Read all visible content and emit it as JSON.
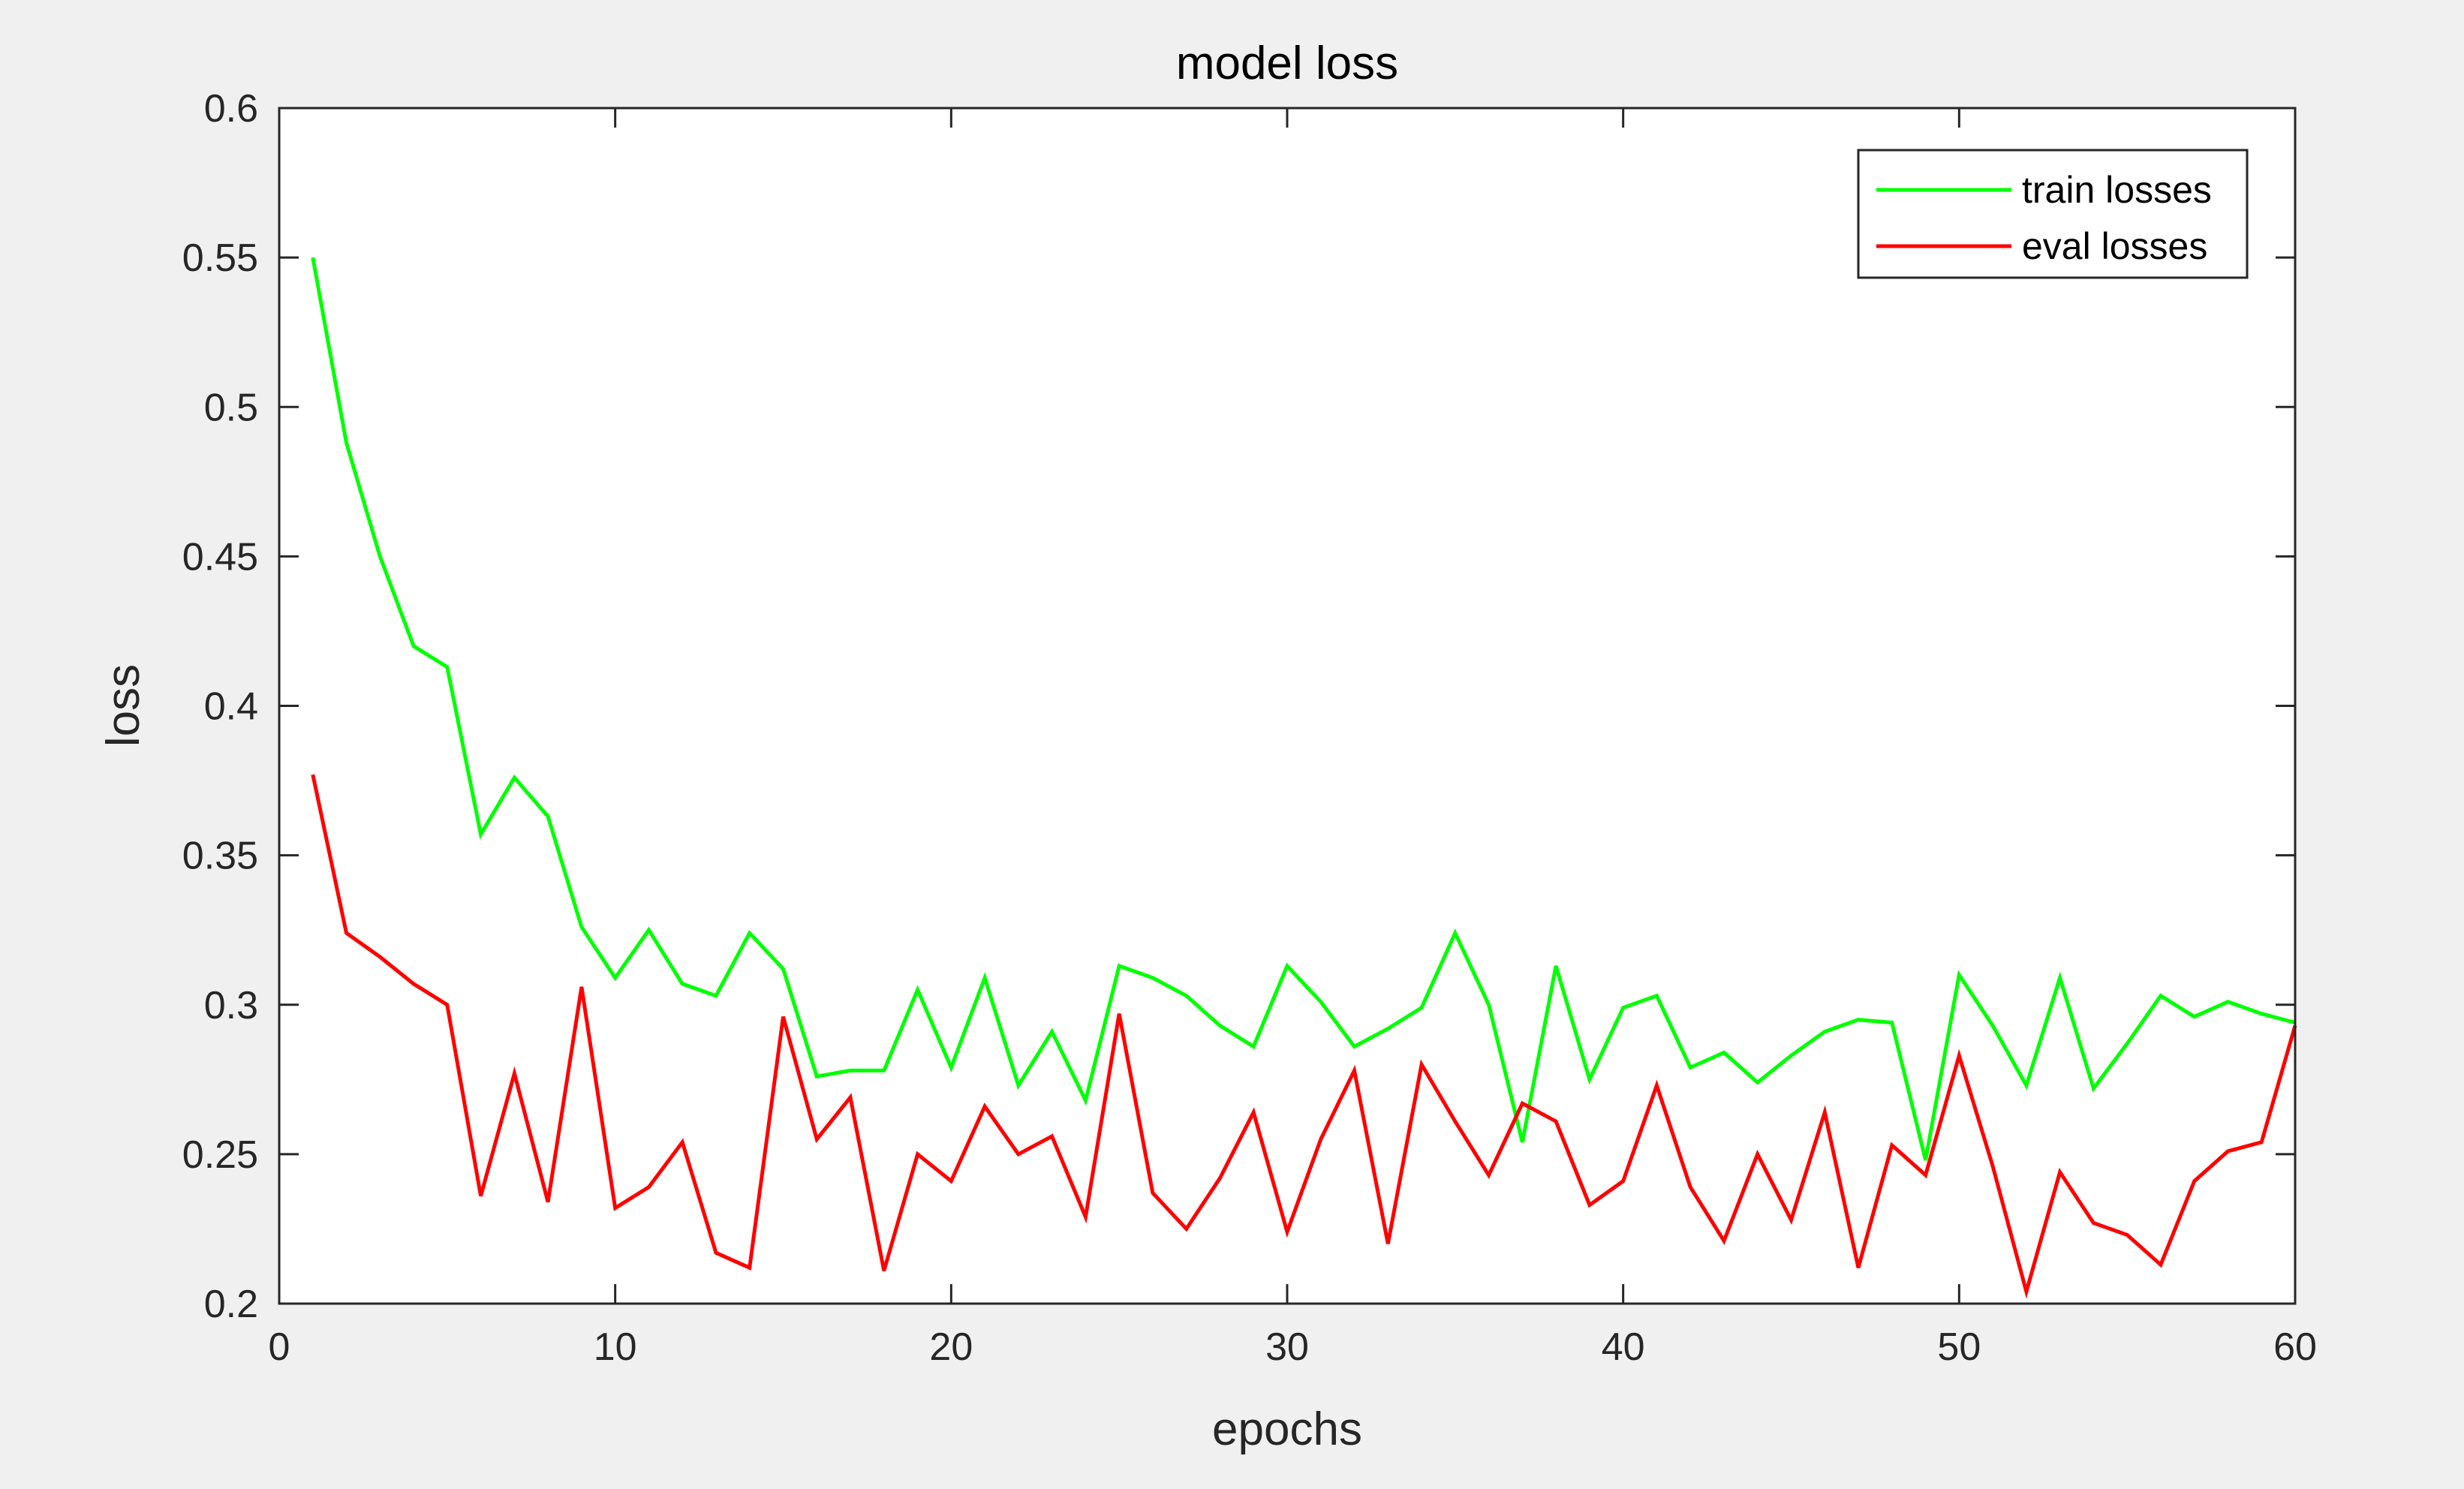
{
  "chart_data": {
    "type": "line",
    "title": "model loss",
    "xlabel": "epochs",
    "ylabel": "loss",
    "xlim": [
      0,
      60
    ],
    "ylim": [
      0.2,
      0.6
    ],
    "x_ticks": [
      "0",
      "10",
      "20",
      "30",
      "40",
      "50",
      "60"
    ],
    "y_ticks": [
      "0.2",
      "0.25",
      "0.3",
      "0.35",
      "0.4",
      "0.45",
      "0.5",
      "0.55",
      "0.6"
    ],
    "grid": false,
    "legend_position": "top-right",
    "x": [
      1,
      2,
      3,
      4,
      5,
      6,
      7,
      8,
      9,
      10,
      11,
      12,
      13,
      14,
      15,
      16,
      17,
      18,
      19,
      20,
      21,
      22,
      23,
      24,
      25,
      26,
      27,
      28,
      29,
      30,
      31,
      32,
      33,
      34,
      35,
      36,
      37,
      38,
      39,
      40,
      41,
      42,
      43,
      44,
      45,
      46,
      47,
      48,
      49,
      50,
      51,
      52,
      53,
      54,
      55,
      56,
      57,
      58,
      59,
      60
    ],
    "series": [
      {
        "name": "train losses",
        "color": "#00ff00",
        "values": [
          0.55,
          0.488,
          0.45,
          0.42,
          0.413,
          0.357,
          0.376,
          0.363,
          0.326,
          0.309,
          0.325,
          0.307,
          0.303,
          0.324,
          0.312,
          0.276,
          0.278,
          0.278,
          0.305,
          0.279,
          0.309,
          0.273,
          0.291,
          0.268,
          0.313,
          0.309,
          0.303,
          0.293,
          0.286,
          0.313,
          0.301,
          0.286,
          0.292,
          0.299,
          0.324,
          0.3,
          0.254,
          0.313,
          0.275,
          0.299,
          0.303,
          0.279,
          0.284,
          0.274,
          0.283,
          0.291,
          0.295,
          0.294,
          0.248,
          0.31,
          0.293,
          0.273,
          0.309,
          0.272,
          0.287,
          0.303,
          0.296,
          0.301,
          0.297,
          0.294
        ]
      },
      {
        "name": "eval losses",
        "color": "#ff0000",
        "values": [
          0.377,
          0.324,
          0.316,
          0.307,
          0.3,
          0.236,
          0.277,
          0.234,
          0.306,
          0.232,
          0.239,
          0.254,
          0.217,
          0.212,
          0.296,
          0.255,
          0.269,
          0.211,
          0.25,
          0.241,
          0.266,
          0.25,
          0.256,
          0.229,
          0.297,
          0.237,
          0.225,
          0.242,
          0.264,
          0.224,
          0.255,
          0.278,
          0.22,
          0.28,
          0.261,
          0.243,
          0.267,
          0.261,
          0.233,
          0.241,
          0.273,
          0.239,
          0.221,
          0.25,
          0.228,
          0.264,
          0.212,
          0.253,
          0.243,
          0.283,
          0.246,
          0.204,
          0.244,
          0.227,
          0.223,
          0.213,
          0.241,
          0.251,
          0.254,
          0.293
        ]
      }
    ]
  }
}
